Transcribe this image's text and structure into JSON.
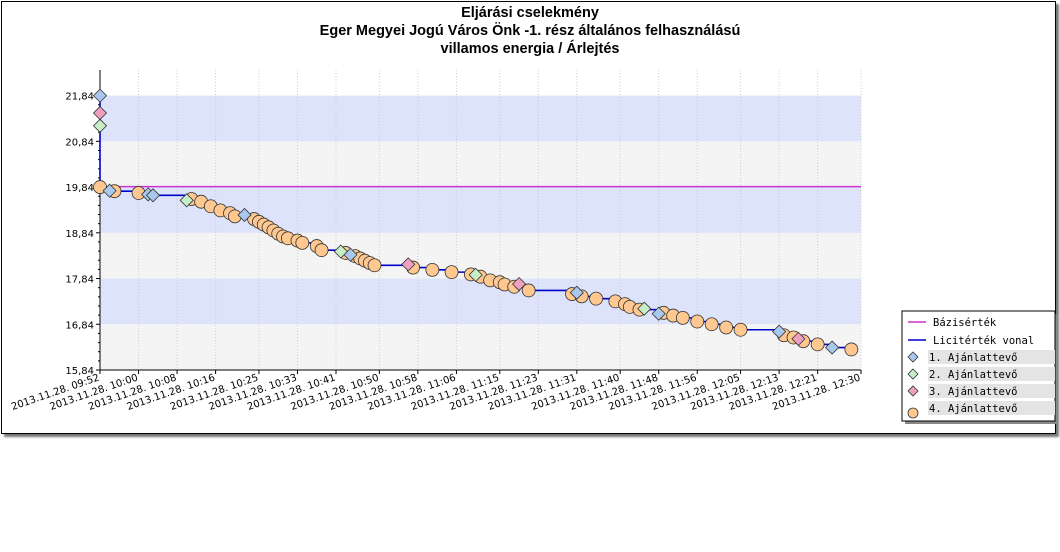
{
  "chart_data": {
    "type": "line",
    "title": [
      "Eljárási cselekmény",
      "Eger Megyei Jogú Város Önk -1. rész általános felhasználású",
      "villamos energia / Árlejtés"
    ],
    "xlabel": "",
    "ylabel": "",
    "ylim": [
      15.84,
      22.4
    ],
    "yticks": [
      "15,84",
      "16,84",
      "17,84",
      "18,84",
      "19,84",
      "20,84",
      "21,84"
    ],
    "xlim": [
      "2013.11.28. 09:52",
      "2013.11.28. 12:30"
    ],
    "xticks": [
      "2013.11.28. 09:52",
      "2013.11.28. 10:00",
      "2013.11.28. 10:08",
      "2013.11.28. 10:16",
      "2013.11.28. 10:25",
      "2013.11.28. 10:33",
      "2013.11.28. 10:41",
      "2013.11.28. 10:50",
      "2013.11.28. 10:58",
      "2013.11.28. 11:06",
      "2013.11.28. 11:15",
      "2013.11.28. 11:23",
      "2013.11.28. 11:31",
      "2013.11.28. 11:40",
      "2013.11.28. 11:48",
      "2013.11.28. 11:56",
      "2013.11.28. 12:05",
      "2013.11.28. 12:13",
      "2013.11.28. 12:21",
      "2013.11.28. 12:30"
    ],
    "legend_position": "right",
    "baseline": {
      "name": "Bázisérték",
      "value": 19.85,
      "color": "#cc33cc"
    },
    "licit_line": {
      "name": "Licitérték vonal",
      "color": "#0000cc"
    },
    "series": [
      {
        "name": "1. Ajánlattevő",
        "color": "#a8c8ee",
        "x": [
          "2013.11.28. 09:52",
          "2013.11.28. 09:54",
          "2013.11.28. 10:02",
          "2013.11.28. 10:03",
          "2013.11.28. 10:22",
          "2013.11.28. 10:44",
          "2013.11.28. 11:31",
          "2013.11.28. 11:48",
          "2013.11.28. 12:13",
          "2013.11.28. 12:24"
        ],
        "y": [
          21.84,
          19.76,
          19.68,
          19.66,
          19.23,
          18.36,
          17.53,
          17.07,
          16.68,
          16.33
        ]
      },
      {
        "name": "2. Ajánlattevő",
        "color": "#c8eec8",
        "x": [
          "2013.11.28. 09:52",
          "2013.11.28. 10:10",
          "2013.11.28. 10:42",
          "2013.11.28. 11:10",
          "2013.11.28. 11:45"
        ],
        "y": [
          21.18,
          19.55,
          18.43,
          17.92,
          17.18
        ]
      },
      {
        "name": "3. Ajánlattevő",
        "color": "#eea0c0",
        "x": [
          "2013.11.28. 09:52",
          "2013.11.28. 10:56",
          "2013.11.28. 11:19",
          "2013.11.28. 12:17"
        ],
        "y": [
          21.46,
          18.15,
          17.72,
          16.52
        ]
      },
      {
        "name": "4. Ajánlattevő",
        "color": "#ffc890",
        "x": [
          "2013.11.28. 09:52",
          "2013.11.28. 09:55",
          "2013.11.28. 10:00",
          "2013.11.28. 10:11",
          "2013.11.28. 10:13",
          "2013.11.28. 10:15",
          "2013.11.28. 10:17",
          "2013.11.28. 10:19",
          "2013.11.28. 10:20",
          "2013.11.28. 10:24",
          "2013.11.28. 10:25",
          "2013.11.28. 10:26",
          "2013.11.28. 10:27",
          "2013.11.28. 10:28",
          "2013.11.28. 10:29",
          "2013.11.28. 10:30",
          "2013.11.28. 10:31",
          "2013.11.28. 10:33",
          "2013.11.28. 10:34",
          "2013.11.28. 10:37",
          "2013.11.28. 10:38",
          "2013.11.28. 10:43",
          "2013.11.28. 10:45",
          "2013.11.28. 10:46",
          "2013.11.28. 10:47",
          "2013.11.28. 10:48",
          "2013.11.28. 10:49",
          "2013.11.28. 10:57",
          "2013.11.28. 11:01",
          "2013.11.28. 11:05",
          "2013.11.28. 11:09",
          "2013.11.28. 11:11",
          "2013.11.28. 11:13",
          "2013.11.28. 11:15",
          "2013.11.28. 11:16",
          "2013.11.28. 11:18",
          "2013.11.28. 11:21",
          "2013.11.28. 11:30",
          "2013.11.28. 11:32",
          "2013.11.28. 11:35",
          "2013.11.28. 11:39",
          "2013.11.28. 11:41",
          "2013.11.28. 11:42",
          "2013.11.28. 11:44",
          "2013.11.28. 11:49",
          "2013.11.28. 11:51",
          "2013.11.28. 11:53",
          "2013.11.28. 11:56",
          "2013.11.28. 11:59",
          "2013.11.28. 12:02",
          "2013.11.28. 12:05",
          "2013.11.28. 12:14",
          "2013.11.28. 12:16",
          "2013.11.28. 12:18",
          "2013.11.28. 12:21",
          "2013.11.28. 12:28"
        ],
        "y": [
          19.84,
          19.75,
          19.71,
          19.58,
          19.52,
          19.42,
          19.33,
          19.27,
          19.2,
          19.14,
          19.08,
          19.02,
          18.96,
          18.89,
          18.82,
          18.76,
          18.72,
          18.67,
          18.62,
          18.55,
          18.46,
          18.4,
          18.33,
          18.28,
          18.23,
          18.18,
          18.13,
          18.08,
          18.03,
          17.98,
          17.93,
          17.88,
          17.8,
          17.76,
          17.71,
          17.66,
          17.58,
          17.5,
          17.45,
          17.4,
          17.34,
          17.28,
          17.22,
          17.16,
          17.09,
          17.03,
          16.98,
          16.9,
          16.84,
          16.77,
          16.72,
          16.6,
          16.55,
          16.47,
          16.4,
          16.29
        ]
      }
    ]
  }
}
